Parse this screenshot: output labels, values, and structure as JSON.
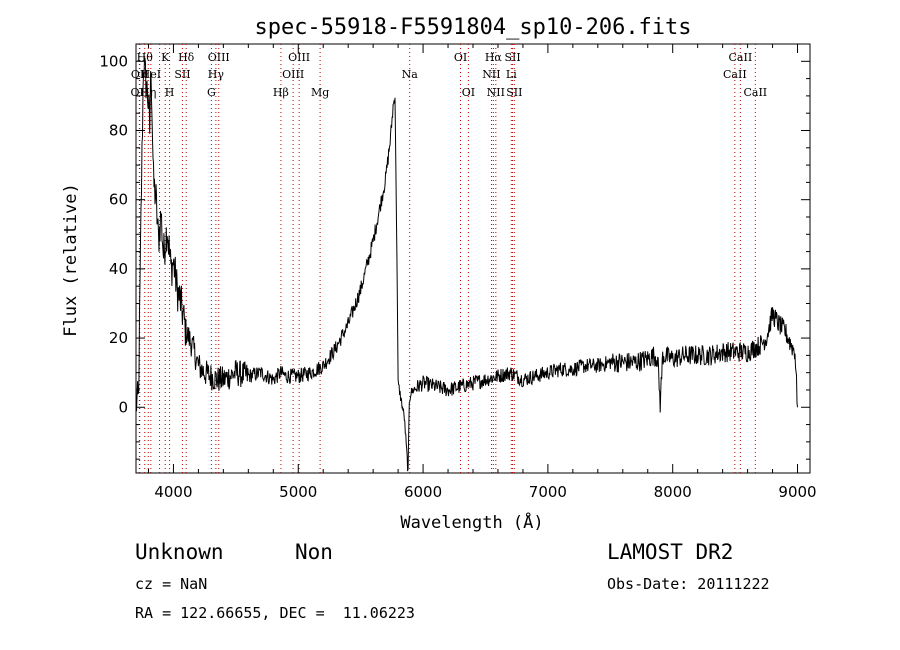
{
  "chart_data": {
    "type": "line",
    "title": "spec-55918-F5591804_sp10-206.fits",
    "xlabel": "Wavelength (Å)",
    "ylabel": "Flux (relative)",
    "xlim": [
      3700,
      9100
    ],
    "ylim": [
      -19,
      105
    ],
    "xticks": [
      4000,
      5000,
      6000,
      7000,
      8000,
      9000
    ],
    "yticks": [
      0,
      20,
      40,
      60,
      80,
      100
    ],
    "grid": false,
    "series": [
      {
        "x": [
          3700,
          3720,
          3740,
          3760,
          3780,
          3800,
          3810,
          3820,
          3840,
          3860,
          3880,
          3900,
          3920,
          3950,
          3980,
          4000,
          4030,
          4060,
          4100,
          4150,
          4200,
          4250,
          4300,
          4350,
          4400,
          4450,
          4500,
          4600,
          4700,
          4800,
          4860,
          4900,
          5000,
          5100,
          5200,
          5300,
          5400,
          5500,
          5600,
          5700,
          5740,
          5760,
          5775,
          5790,
          5800,
          5820,
          5850,
          5880,
          5890,
          5900,
          5920,
          6000,
          6100,
          6200,
          6300,
          6400,
          6500,
          6600,
          6700,
          6800,
          6900,
          7000,
          7100,
          7200,
          7300,
          7400,
          7500,
          7600,
          7700,
          7800,
          7850,
          7880,
          7900,
          7920,
          8000,
          8100,
          8200,
          8300,
          8400,
          8500,
          8600,
          8700,
          8750,
          8800,
          8850,
          8900,
          8950,
          8980,
          9000
        ],
        "values": [
          1,
          2,
          55,
          100,
          94,
          88,
          80,
          100,
          65,
          60,
          48,
          56,
          44,
          52,
          40,
          42,
          34,
          30,
          22,
          18,
          12,
          10,
          9,
          8,
          8,
          9,
          10,
          9,
          10,
          8,
          10,
          9,
          9,
          10,
          12,
          17,
          24,
          34,
          48,
          66,
          78,
          87,
          90,
          45,
          7,
          3,
          -3,
          -19,
          2,
          4,
          5,
          7,
          6,
          5,
          6,
          7,
          8,
          9,
          10,
          8,
          9,
          10,
          11,
          11,
          12,
          12,
          13,
          13,
          13,
          14,
          15,
          14,
          1,
          15,
          14,
          15,
          15,
          15,
          16,
          16,
          16,
          18,
          20,
          27,
          24,
          22,
          18,
          16,
          0
        ]
      }
    ],
    "lines": [
      {
        "x": 3727,
        "label": "OII",
        "row": 2
      },
      {
        "x": 3730,
        "label": "OII",
        "row": 1
      },
      {
        "x": 3770,
        "label": "Hθ",
        "row": 0
      },
      {
        "x": 3798,
        "label": "Hη",
        "row": 2
      },
      {
        "x": 3819,
        "label": "HeI",
        "row": 1
      },
      {
        "x": 3889,
        "label": "",
        "row": -1
      },
      {
        "x": 3934,
        "label": "K",
        "row": 0
      },
      {
        "x": 3969,
        "label": "H",
        "row": 2
      },
      {
        "x": 4072,
        "label": "SII",
        "row": 1
      },
      {
        "x": 4102,
        "label": "Hδ",
        "row": 0
      },
      {
        "x": 4304,
        "label": "G",
        "row": 2
      },
      {
        "x": 4340,
        "label": "Hγ",
        "row": 1
      },
      {
        "x": 4363,
        "label": "OIII",
        "row": 0
      },
      {
        "x": 4861,
        "label": "Hβ",
        "row": 2
      },
      {
        "x": 4959,
        "label": "OIII",
        "row": 1
      },
      {
        "x": 5007,
        "label": "OIII",
        "row": 0
      },
      {
        "x": 5175,
        "label": "Mg",
        "row": 2
      },
      {
        "x": 5893,
        "label": "Na",
        "row": 1
      },
      {
        "x": 6300,
        "label": "OI",
        "row": 0
      },
      {
        "x": 6363,
        "label": "OI",
        "row": 2
      },
      {
        "x": 6548,
        "label": "NII",
        "row": 1
      },
      {
        "x": 6563,
        "label": "Hα",
        "row": 0
      },
      {
        "x": 6583,
        "label": "NII",
        "row": 2
      },
      {
        "x": 6707,
        "label": "Li",
        "row": 1
      },
      {
        "x": 6717,
        "label": "SII",
        "row": 0
      },
      {
        "x": 6731,
        "label": "SII",
        "row": 2
      },
      {
        "x": 8498,
        "label": "CaII",
        "row": 1
      },
      {
        "x": 8542,
        "label": "CaII",
        "row": 0
      },
      {
        "x": 8662,
        "label": "CaII",
        "row": 2
      }
    ]
  },
  "info": {
    "class": "Unknown",
    "subclass": "Non",
    "release": "LAMOST DR2",
    "cz": "cz = NaN",
    "obs_date": "Obs-Date: 20111222",
    "coords": "RA = 122.66655, DEC =  11.06223"
  }
}
